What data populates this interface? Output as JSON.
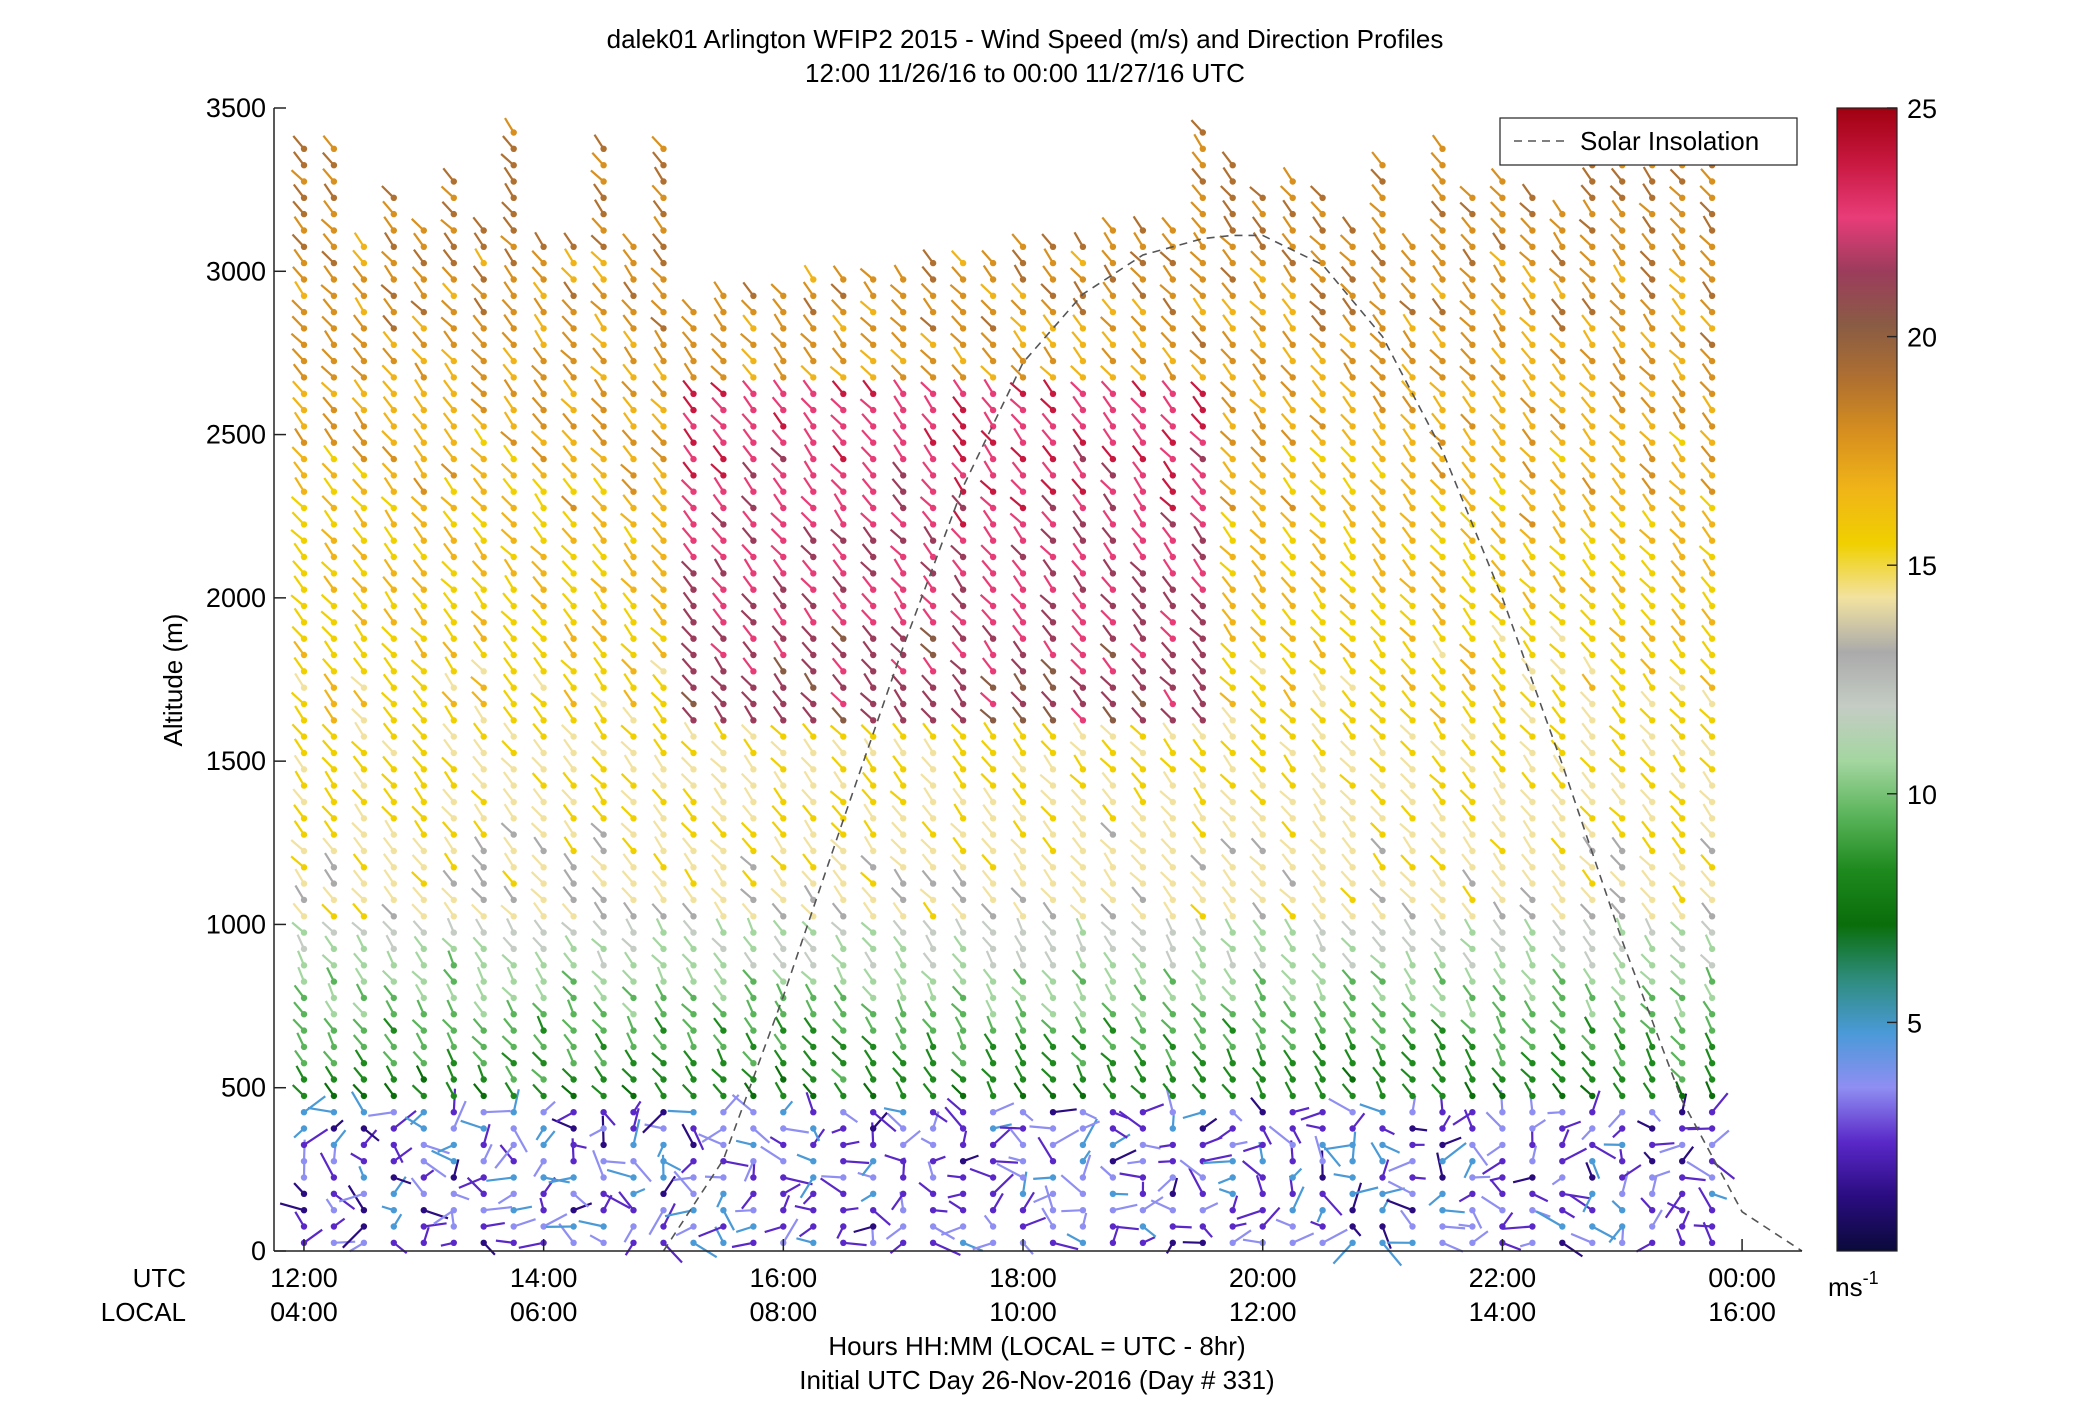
{
  "chart_data": {
    "type": "wind-barb-profile",
    "title": "dalek01 Arlington WFIP2 2015 - Wind Speed (m/s) and Direction Profiles",
    "subtitle": "12:00 11/26/16 to 00:00 11/27/16  UTC",
    "ylabel": "Altitude (m)",
    "xlabel": "Hours HH:MM  (LOCAL = UTC - 8hr)",
    "xlabel2": "Initial UTC Day 26-Nov-2016 (Day # 331)",
    "x_row_labels": [
      "UTC",
      "LOCAL"
    ],
    "xlim": [
      11.75,
      24.5
    ],
    "ylim": [
      0,
      3500
    ],
    "y_ticks": [
      0,
      500,
      1000,
      1500,
      2000,
      2500,
      3000,
      3500
    ],
    "x_ticks_utc": [
      12,
      14,
      16,
      18,
      20,
      22,
      24
    ],
    "x_tick_labels_utc": [
      "12:00",
      "14:00",
      "16:00",
      "18:00",
      "20:00",
      "22:00",
      "00:00"
    ],
    "x_tick_labels_local": [
      "04:00",
      "06:00",
      "08:00",
      "10:00",
      "12:00",
      "14:00",
      "16:00"
    ],
    "legend": {
      "label": "Solar Insolation",
      "placement": "top-right",
      "style": "dashed"
    },
    "colorbar": {
      "range": [
        0,
        25
      ],
      "ticks": [
        5,
        10,
        15,
        20,
        25
      ],
      "unit_label": "ms",
      "unit_exponent": "-1",
      "colors": [
        "#0a0a3a",
        "#2a0c80",
        "#5a28c8",
        "#8f8ef2",
        "#4a9ad8",
        "#2e8c7c",
        "#0a6e0a",
        "#1e8a1e",
        "#5ab45a",
        "#a4d6a0",
        "#c4ccc4",
        "#aaaaaa",
        "#f2e2a0",
        "#f0d000",
        "#f0b418",
        "#d8901e",
        "#b07030",
        "#8a5c44",
        "#9c3c5c",
        "#e83c78",
        "#c81840",
        "#a00010"
      ]
    },
    "solar_insolation": {
      "x": [
        15.0,
        15.5,
        16.0,
        16.5,
        17.0,
        17.5,
        18.0,
        18.5,
        19.0,
        19.5,
        19.75,
        20.0,
        20.5,
        21.0,
        21.5,
        22.0,
        22.5,
        23.0,
        23.5,
        24.0,
        24.5
      ],
      "y": [
        0,
        280,
        780,
        1320,
        1850,
        2340,
        2720,
        2930,
        3050,
        3100,
        3110,
        3110,
        3020,
        2800,
        2450,
        2000,
        1490,
        950,
        460,
        120,
        0
      ]
    },
    "profiles_summary": [
      {
        "altitude_range": [
          0,
          450
        ],
        "speed_range_ms": [
          0,
          5
        ],
        "direction": "variable, weak winds"
      },
      {
        "altitude_range": [
          450,
          1000
        ],
        "speed_range_ms": [
          6,
          11
        ],
        "direction": "southerly"
      },
      {
        "altitude_range": [
          1000,
          3500
        ],
        "speed_range_ms": [
          12,
          24
        ],
        "direction": "south-southwest"
      }
    ]
  }
}
